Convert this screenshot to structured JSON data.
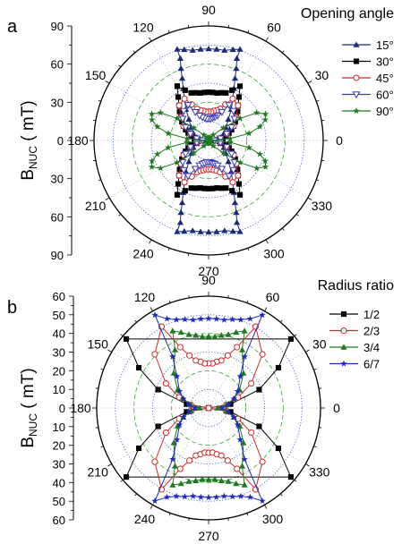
{
  "colors": {
    "axis": "#000000",
    "grid_dot": "#3355cc",
    "grid_dash": "#33aa33",
    "s15": "#1a2a7a",
    "s30": "#000000",
    "s45": "#cc2a2a",
    "s60": "#3a3ab8",
    "s90": "#1f7a1f",
    "r12": "#000000",
    "r23": "#cc2a2a",
    "r34": "#1f7a1f",
    "r67": "#1f2ab8"
  },
  "chart_data": [
    {
      "type": "polar-line",
      "panel_label": "a",
      "title": "Opening angle",
      "ylabel": "B",
      "ylabel_sub": "NUC",
      "ylabel_unit": " ( mT)",
      "rmax": 95,
      "angle_ticks": [
        "0",
        "30",
        "60",
        "90",
        "120",
        "150",
        "180",
        "210",
        "240",
        "270",
        "300",
        "330"
      ],
      "radial_ticks_upper": [
        "0",
        "30",
        "60",
        "90"
      ],
      "radial_ticks_lower": [
        "30",
        "60",
        "90"
      ],
      "series": [
        {
          "name": "15°",
          "marker": "tri-up",
          "color_key": "s15",
          "theta": [
            71,
            75,
            80,
            85,
            90,
            95,
            100,
            105,
            109,
            109,
            111,
            113,
            116,
            120,
            126,
            133,
            143,
            155,
            165,
            175,
            180,
            185,
            195,
            205,
            217,
            227,
            234,
            240,
            244,
            247,
            249,
            251,
            251,
            255,
            260,
            265,
            270,
            275,
            280,
            285,
            289,
            289,
            291,
            293,
            296,
            300,
            306,
            313,
            323,
            335,
            345,
            355,
            0,
            5,
            15,
            25,
            37,
            47,
            54,
            60,
            64,
            67,
            69,
            71
          ],
          "r": [
            80,
            78,
            76,
            76,
            76,
            76,
            76,
            78,
            80,
            72,
            64,
            56,
            48,
            40,
            32,
            24,
            18,
            14,
            10,
            6,
            4,
            6,
            10,
            14,
            18,
            24,
            32,
            40,
            48,
            56,
            64,
            72,
            80,
            78,
            76,
            76,
            76,
            76,
            76,
            78,
            80,
            72,
            64,
            56,
            48,
            40,
            32,
            24,
            18,
            14,
            10,
            6,
            4,
            6,
            10,
            14,
            18,
            24,
            32,
            40,
            48,
            56,
            64,
            72
          ]
        },
        {
          "name": "30°",
          "marker": "square",
          "color_key": "s30",
          "theta": [
            60,
            65,
            70,
            75,
            80,
            85,
            90,
            95,
            100,
            105,
            110,
            115,
            120,
            120,
            125,
            130,
            135,
            140,
            145,
            150,
            155,
            160,
            165,
            170,
            175,
            180,
            185,
            190,
            195,
            200,
            205,
            210,
            215,
            220,
            225,
            230,
            235,
            240,
            240,
            245,
            250,
            255,
            260,
            265,
            270,
            275,
            280,
            285,
            290,
            295,
            300,
            300,
            305,
            310,
            315,
            320,
            325,
            330,
            335,
            340,
            345,
            350,
            355,
            0,
            5,
            10,
            15,
            20,
            25,
            30,
            35,
            40,
            45,
            50,
            55
          ],
          "r": [
            52,
            46,
            42,
            41,
            40,
            40,
            40,
            40,
            40,
            41,
            42,
            46,
            52,
            52,
            44,
            38,
            34,
            30,
            27,
            24,
            21,
            18,
            15,
            12,
            9,
            6,
            9,
            12,
            15,
            18,
            21,
            24,
            27,
            30,
            34,
            38,
            44,
            52,
            52,
            46,
            42,
            41,
            40,
            40,
            40,
            40,
            40,
            41,
            42,
            46,
            52,
            52,
            44,
            38,
            34,
            30,
            27,
            24,
            21,
            18,
            15,
            12,
            9,
            6,
            9,
            12,
            15,
            18,
            21,
            24,
            27,
            30,
            34,
            38,
            44
          ]
        },
        {
          "name": "45°",
          "marker": "circle",
          "color_key": "s45",
          "theta": [
            0,
            10,
            20,
            30,
            40,
            50,
            60,
            65,
            70,
            75,
            80,
            85,
            90,
            95,
            100,
            105,
            110,
            115,
            120,
            130,
            140,
            150,
            160,
            170,
            180,
            190,
            200,
            210,
            220,
            230,
            240,
            245,
            250,
            255,
            260,
            265,
            270,
            275,
            280,
            285,
            290,
            295,
            300,
            310,
            320,
            330,
            340,
            350
          ],
          "r": [
            6,
            10,
            16,
            24,
            30,
            38,
            40,
            33,
            28,
            26,
            25,
            24,
            24,
            24,
            25,
            26,
            28,
            33,
            40,
            38,
            30,
            24,
            16,
            10,
            6,
            10,
            16,
            24,
            30,
            38,
            40,
            33,
            28,
            26,
            25,
            24,
            24,
            24,
            25,
            26,
            28,
            33,
            40,
            38,
            30,
            24,
            16,
            10
          ]
        },
        {
          "name": "60°",
          "marker": "tri-down",
          "color_key": "s60",
          "theta": [
            0,
            10,
            20,
            30,
            40,
            50,
            60,
            65,
            70,
            75,
            80,
            85,
            90,
            95,
            100,
            105,
            110,
            115,
            120,
            130,
            140,
            150,
            160,
            170,
            180,
            190,
            200,
            210,
            220,
            230,
            240,
            245,
            250,
            255,
            260,
            265,
            270,
            275,
            280,
            285,
            290,
            295,
            300,
            310,
            320,
            330,
            340,
            350
          ],
          "r": [
            5,
            10,
            16,
            22,
            28,
            32,
            34,
            26,
            22,
            20,
            19,
            18,
            18,
            18,
            19,
            20,
            22,
            26,
            34,
            32,
            28,
            22,
            16,
            10,
            5,
            10,
            16,
            22,
            28,
            32,
            34,
            26,
            22,
            20,
            19,
            18,
            18,
            18,
            19,
            20,
            22,
            26,
            34,
            32,
            28,
            22,
            16,
            10
          ]
        },
        {
          "name": "90°",
          "marker": "star",
          "color_key": "s90",
          "theta": [
            0,
            5,
            10,
            15,
            20,
            25,
            30,
            35,
            40,
            50,
            60,
            70,
            80,
            90,
            100,
            110,
            120,
            130,
            140,
            145,
            150,
            155,
            160,
            165,
            170,
            175,
            180,
            185,
            190,
            195,
            200,
            205,
            210,
            215,
            220,
            230,
            240,
            250,
            260,
            270,
            280,
            290,
            300,
            310,
            320,
            325,
            330,
            335,
            340,
            345,
            350,
            355
          ],
          "r": [
            0,
            18,
            34,
            44,
            50,
            52,
            46,
            32,
            16,
            6,
            3,
            2,
            2,
            2,
            2,
            2,
            3,
            6,
            16,
            32,
            46,
            52,
            50,
            44,
            34,
            18,
            0,
            18,
            34,
            44,
            50,
            52,
            46,
            32,
            16,
            6,
            3,
            2,
            2,
            2,
            2,
            2,
            3,
            6,
            16,
            32,
            46,
            52,
            50,
            44,
            34,
            18
          ]
        }
      ]
    },
    {
      "type": "polar-line",
      "panel_label": "b",
      "title": "Radius ratio",
      "ylabel": "B",
      "ylabel_sub": "NUC",
      "ylabel_unit": " ( mT)",
      "rmax": 50,
      "angle_ticks": [
        "0",
        "30",
        "60",
        "90",
        "120",
        "150",
        "180",
        "210",
        "240",
        "270",
        "300",
        "330"
      ],
      "radial_ticks_upper": [
        "0",
        "10",
        "20",
        "30",
        "40",
        "50",
        "60"
      ],
      "radial_ticks_lower": [
        "10",
        "20",
        "30",
        "40",
        "50",
        "60"
      ],
      "series": [
        {
          "name": "1/2",
          "marker": "square",
          "color_key": "r12",
          "theta": [
            0,
            10,
            20,
            30,
            40,
            140,
            150,
            160,
            170,
            180,
            190,
            200,
            210,
            220,
            320,
            330,
            340,
            350
          ],
          "r": [
            0,
            10,
            24,
            36,
            48,
            48,
            36,
            24,
            10,
            0,
            10,
            24,
            36,
            48,
            48,
            36,
            24,
            10
          ]
        },
        {
          "name": "2/3",
          "marker": "circle",
          "color_key": "r23",
          "theta": [
            0,
            10,
            20,
            30,
            45,
            60,
            65,
            70,
            75,
            80,
            85,
            90,
            95,
            100,
            105,
            110,
            115,
            120,
            135,
            150,
            160,
            170,
            180,
            190,
            200,
            210,
            225,
            240,
            245,
            250,
            255,
            260,
            265,
            270,
            275,
            280,
            285,
            290,
            295,
            300,
            315,
            330,
            340,
            350
          ],
          "r": [
            0,
            8,
            14,
            22,
            34,
            42,
            30,
            25,
            22,
            21,
            20,
            20,
            20,
            21,
            22,
            25,
            30,
            42,
            34,
            22,
            14,
            8,
            0,
            8,
            14,
            22,
            34,
            42,
            30,
            25,
            22,
            21,
            20,
            20,
            20,
            21,
            22,
            25,
            30,
            42,
            34,
            22,
            14,
            8
          ]
        },
        {
          "name": "3/4",
          "marker": "tri-up",
          "color_key": "r34",
          "theta": [
            0,
            10,
            20,
            30,
            45,
            60,
            65,
            70,
            75,
            80,
            85,
            90,
            95,
            100,
            105,
            110,
            115,
            120,
            135,
            150,
            160,
            170,
            180,
            190,
            200,
            210,
            225,
            240,
            245,
            250,
            255,
            260,
            265,
            270,
            275,
            280,
            285,
            290,
            295,
            300,
            315,
            330,
            340,
            350
          ],
          "r": [
            4,
            8,
            12,
            16,
            22,
            30,
            38,
            36,
            34,
            33,
            32,
            32,
            32,
            33,
            34,
            36,
            38,
            30,
            22,
            16,
            12,
            8,
            4,
            8,
            12,
            16,
            22,
            30,
            38,
            36,
            34,
            33,
            32,
            32,
            32,
            33,
            34,
            36,
            38,
            30,
            22,
            16,
            12,
            8
          ]
        },
        {
          "name": "6/7",
          "marker": "star",
          "color_key": "r67",
          "theta": [
            0,
            10,
            20,
            30,
            45,
            55,
            60,
            65,
            70,
            75,
            80,
            85,
            90,
            95,
            100,
            105,
            110,
            115,
            120,
            125,
            135,
            150,
            160,
            170,
            180,
            190,
            200,
            210,
            225,
            235,
            240,
            245,
            250,
            255,
            260,
            265,
            270,
            275,
            280,
            285,
            290,
            295,
            300,
            305,
            315,
            330,
            340,
            350
          ],
          "r": [
            6,
            9,
            12,
            15,
            20,
            28,
            48,
            44,
            42,
            41,
            40,
            40,
            40,
            40,
            40,
            41,
            42,
            44,
            48,
            28,
            20,
            15,
            12,
            9,
            6,
            9,
            12,
            15,
            20,
            28,
            48,
            44,
            42,
            41,
            40,
            40,
            40,
            40,
            40,
            41,
            42,
            44,
            48,
            28,
            20,
            15,
            12,
            9
          ]
        }
      ]
    }
  ]
}
